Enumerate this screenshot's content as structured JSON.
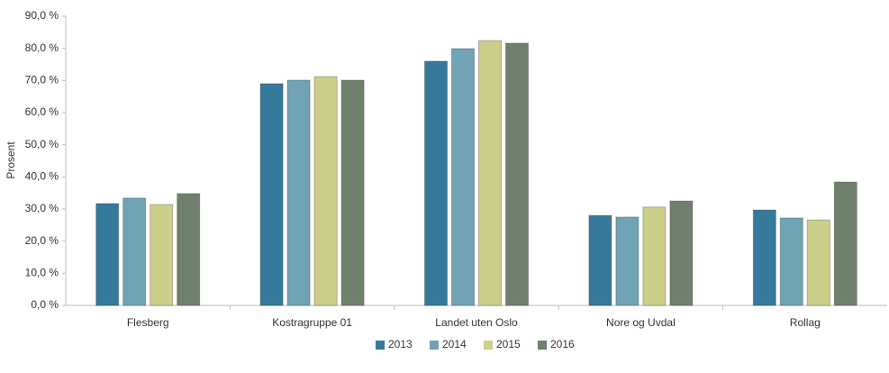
{
  "chart_data": {
    "type": "bar",
    "y_label": "Prosent",
    "categories": [
      "Flesberg",
      "Kostragruppe 01",
      "Landet uten Oslo",
      "Nore og Uvdal",
      "Rollag"
    ],
    "series": [
      {
        "name": "2013",
        "color": "#357a9b",
        "values": [
          31.7,
          69.0,
          76.0,
          28.0,
          29.7
        ]
      },
      {
        "name": "2014",
        "color": "#6fa3b5",
        "values": [
          33.4,
          70.1,
          79.9,
          27.5,
          27.2
        ]
      },
      {
        "name": "2015",
        "color": "#cccf8c",
        "values": [
          31.4,
          71.2,
          82.4,
          30.6,
          26.6
        ]
      },
      {
        "name": "2016",
        "color": "#6f806d",
        "values": [
          34.8,
          70.1,
          81.6,
          32.5,
          38.4
        ]
      }
    ],
    "ylim": [
      0,
      90
    ],
    "yticks": [
      {
        "value": 0,
        "label": "0,0 %"
      },
      {
        "value": 10,
        "label": "10,0 %"
      },
      {
        "value": 20,
        "label": "20,0 %"
      },
      {
        "value": 30,
        "label": "30,0 %"
      },
      {
        "value": 40,
        "label": "40,0 %"
      },
      {
        "value": 50,
        "label": "50,0 %"
      },
      {
        "value": 60,
        "label": "60,0 %"
      },
      {
        "value": 70,
        "label": "70,0 %"
      },
      {
        "value": 80,
        "label": "80,0 %"
      },
      {
        "value": 90,
        "label": "90,0 %"
      }
    ],
    "grid": false,
    "legend": "bottom"
  }
}
